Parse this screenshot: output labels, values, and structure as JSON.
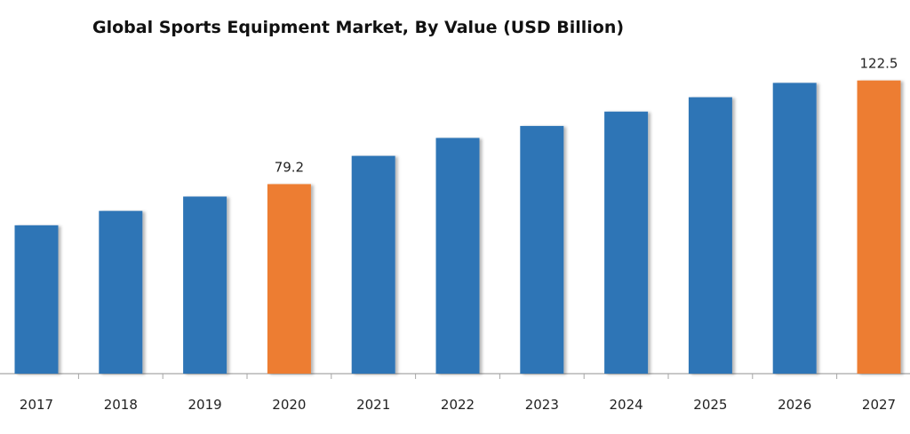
{
  "chart_data": {
    "type": "bar",
    "title": "Global Sports Equipment Market, By Value (USD Billion)",
    "xlabel": "",
    "ylabel": "",
    "categories": [
      "2017",
      "2018",
      "2019",
      "2020",
      "2021",
      "2022",
      "2023",
      "2024",
      "2025",
      "2026",
      "2027"
    ],
    "values": [
      62,
      68,
      74,
      79.2,
      91,
      98.5,
      103.5,
      109.5,
      115.5,
      121.5,
      122.5
    ],
    "ylim": [
      0,
      145
    ],
    "data_labels": [
      {
        "category": "2020",
        "text": "79.2"
      },
      {
        "category": "2027",
        "text": "122.5"
      }
    ],
    "highlighted_categories": [
      "2020",
      "2027"
    ],
    "colors": {
      "bar": "#2e75b6",
      "highlight": "#ed7d31",
      "axis": "#a6a6a6"
    },
    "grid": false,
    "legend": "none"
  }
}
